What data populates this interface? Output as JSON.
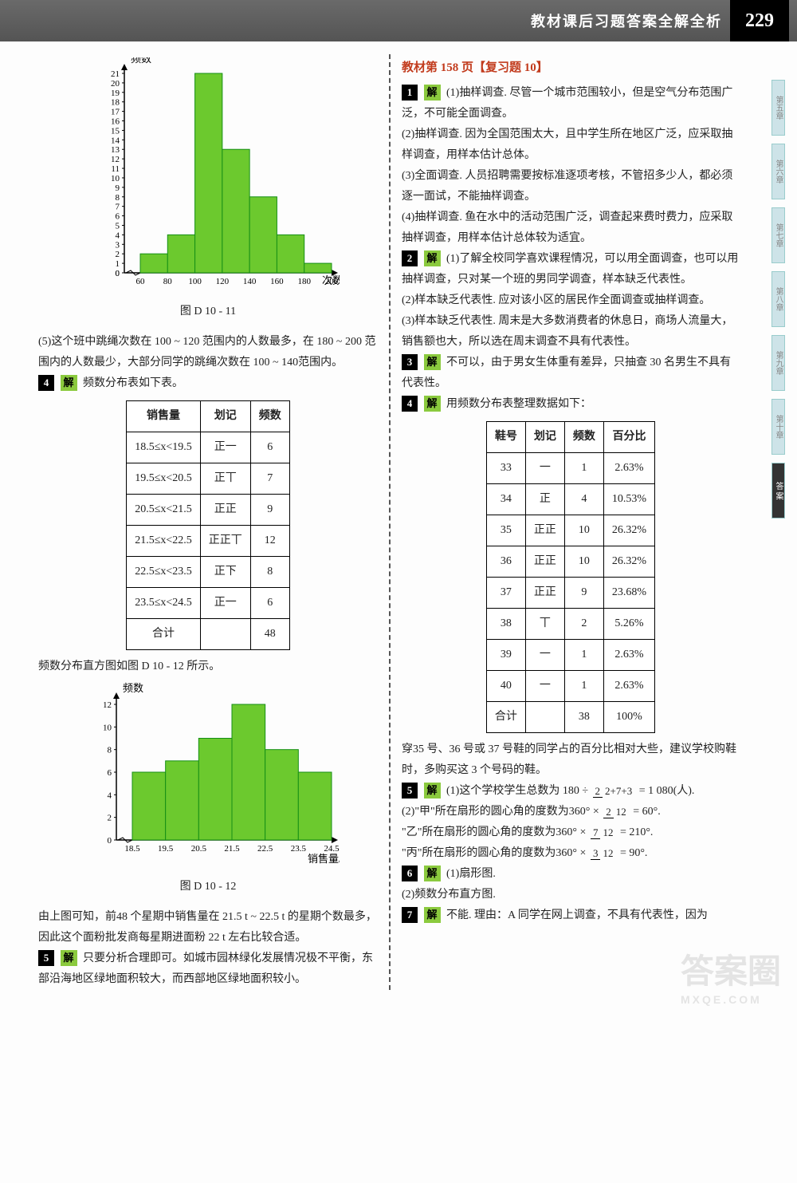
{
  "header": {
    "title": "教材课后习题答案全解全析",
    "page_number": "229"
  },
  "side_tabs": [
    "第五章",
    "第六章",
    "第七章",
    "第八章",
    "第九章",
    "第十章"
  ],
  "side_tab_dark": "答\n案",
  "chart1": {
    "type": "histogram",
    "y_label": "频数",
    "x_label": "次数",
    "x_ticks": [
      "60",
      "80",
      "100",
      "120",
      "140",
      "160",
      "180",
      "200"
    ],
    "y_max": 21,
    "y_tick_step": 1,
    "bars": [
      {
        "x": 60,
        "h": 2
      },
      {
        "x": 80,
        "h": 4
      },
      {
        "x": 100,
        "h": 21
      },
      {
        "x": 120,
        "h": 13
      },
      {
        "x": 140,
        "h": 8
      },
      {
        "x": 160,
        "h": 4
      },
      {
        "x": 180,
        "h": 1
      }
    ],
    "caption": "图 D 10 - 11",
    "bar_color": "#6cc92e",
    "bar_border": "#169016",
    "background": "#ffffff"
  },
  "para5": "(5)这个班中跳绳次数在 100 ~ 120 范围内的人数最多，在 180 ~ 200 范围内的人数最少，大部分同学的跳绳次数在 100 ~ 140范围内。",
  "item4_intro": "频数分布表如下表。",
  "table1": {
    "headers": [
      "销售量",
      "划记",
      "频数"
    ],
    "rows": [
      [
        "18.5≤x<19.5",
        "正一",
        "6"
      ],
      [
        "19.5≤x<20.5",
        "正丅",
        "7"
      ],
      [
        "20.5≤x<21.5",
        "正正",
        "9"
      ],
      [
        "21.5≤x<22.5",
        "正正丅",
        "12"
      ],
      [
        "22.5≤x<23.5",
        "正下",
        "8"
      ],
      [
        "23.5≤x<24.5",
        "正一",
        "6"
      ],
      [
        "合计",
        "",
        "48"
      ]
    ]
  },
  "chart2_intro": "频数分布直方图如图 D 10 - 12 所示。",
  "chart2": {
    "type": "histogram",
    "y_label": "频数",
    "x_label": "销售量/t",
    "x_ticks": [
      "18.5",
      "19.5",
      "20.5",
      "21.5",
      "22.5",
      "23.5",
      "24.5"
    ],
    "y_ticks": [
      0,
      2,
      4,
      6,
      8,
      10,
      12
    ],
    "bars": [
      {
        "x": 18.5,
        "h": 6
      },
      {
        "x": 19.5,
        "h": 7
      },
      {
        "x": 20.5,
        "h": 9
      },
      {
        "x": 21.5,
        "h": 12
      },
      {
        "x": 22.5,
        "h": 8
      },
      {
        "x": 23.5,
        "h": 6
      }
    ],
    "caption": "图 D 10 - 12",
    "bar_color": "#6cc92e",
    "bar_border": "#169016"
  },
  "chart2_after": "由上图可知，前48 个星期中销售量在 21.5 t ~ 22.5 t 的星期个数最多，因此这个面粉批发商每星期进面粉 22 t 左右比较合适。",
  "item5_left": "只要分析合理即可。如城市园林绿化发展情况极不平衡，东部沿海地区绿地面积较大，而西部地区绿地面积较小。",
  "right_heading": "教材第 158 页【复习题 10】",
  "r1": {
    "p1": "(1)抽样调查. 尽管一个城市范围较小，但是空气分布范围广泛，不可能全面调查。",
    "p2": "(2)抽样调查. 因为全国范围太大，且中学生所在地区广泛，应采取抽样调查，用样本估计总体。",
    "p3": "(3)全面调查. 人员招聘需要按标准逐项考核，不管招多少人，都必须逐一面试，不能抽样调查。",
    "p4": "(4)抽样调查. 鱼在水中的活动范围广泛，调查起来费时费力，应采取抽样调查，用样本估计总体较为适宜。"
  },
  "r2": {
    "p1": "(1)了解全校同学喜欢课程情况，可以用全面调查，也可以用抽样调查，只对某一个班的男同学调查，样本缺乏代表性。",
    "p2": "(2)样本缺乏代表性. 应对该小区的居民作全面调查或抽样调查。",
    "p3": "(3)样本缺乏代表性. 周末是大多数消费者的休息日，商场人流量大，销售额也大，所以选在周末调查不具有代表性。"
  },
  "r3": "不可以，由于男女生体重有差异，只抽查 30 名男生不具有代表性。",
  "r4_intro": "用频数分布表整理数据如下：",
  "table2": {
    "headers": [
      "鞋号",
      "划记",
      "频数",
      "百分比"
    ],
    "rows": [
      [
        "33",
        "一",
        "1",
        "2.63%"
      ],
      [
        "34",
        "正",
        "4",
        "10.53%"
      ],
      [
        "35",
        "正正",
        "10",
        "26.32%"
      ],
      [
        "36",
        "正正",
        "10",
        "26.32%"
      ],
      [
        "37",
        "正正",
        "9",
        "23.68%"
      ],
      [
        "38",
        "丅",
        "2",
        "5.26%"
      ],
      [
        "39",
        "一",
        "1",
        "2.63%"
      ],
      [
        "40",
        "一",
        "1",
        "2.63%"
      ],
      [
        "合计",
        "",
        "38",
        "100%"
      ]
    ]
  },
  "r4_after": "穿35 号、36 号或 37 号鞋的同学占的百分比相对大些，建议学校购鞋时，多购买这 3 个号码的鞋。",
  "r5": {
    "line1_pre": "(1)这个学校学生总数为 180 ÷ ",
    "frac1_n": "2",
    "frac1_d": "2+7+3",
    "line1_post": " = 1 080(人).",
    "line2_pre": "(2)\"甲\"所在扇形的圆心角的度数为360° × ",
    "frac2_n": "2",
    "frac2_d": "12",
    "line2_post": " = 60°.",
    "line3_pre": "\"乙\"所在扇形的圆心角的度数为360° × ",
    "frac3_n": "7",
    "frac3_d": "12",
    "line3_post": " = 210°.",
    "line4_pre": "\"丙\"所在扇形的圆心角的度数为360° × ",
    "frac4_n": "3",
    "frac4_d": "12",
    "line4_post": " = 90°."
  },
  "r6": {
    "p1": "(1)扇形图.",
    "p2": "(2)频数分布直方图."
  },
  "r7": "不能. 理由：A 同学在网上调查，不具有代表性，因为",
  "labels": {
    "solve": "解"
  },
  "watermark": {
    "big": "答案圈",
    "small": "MXQE.COM"
  }
}
